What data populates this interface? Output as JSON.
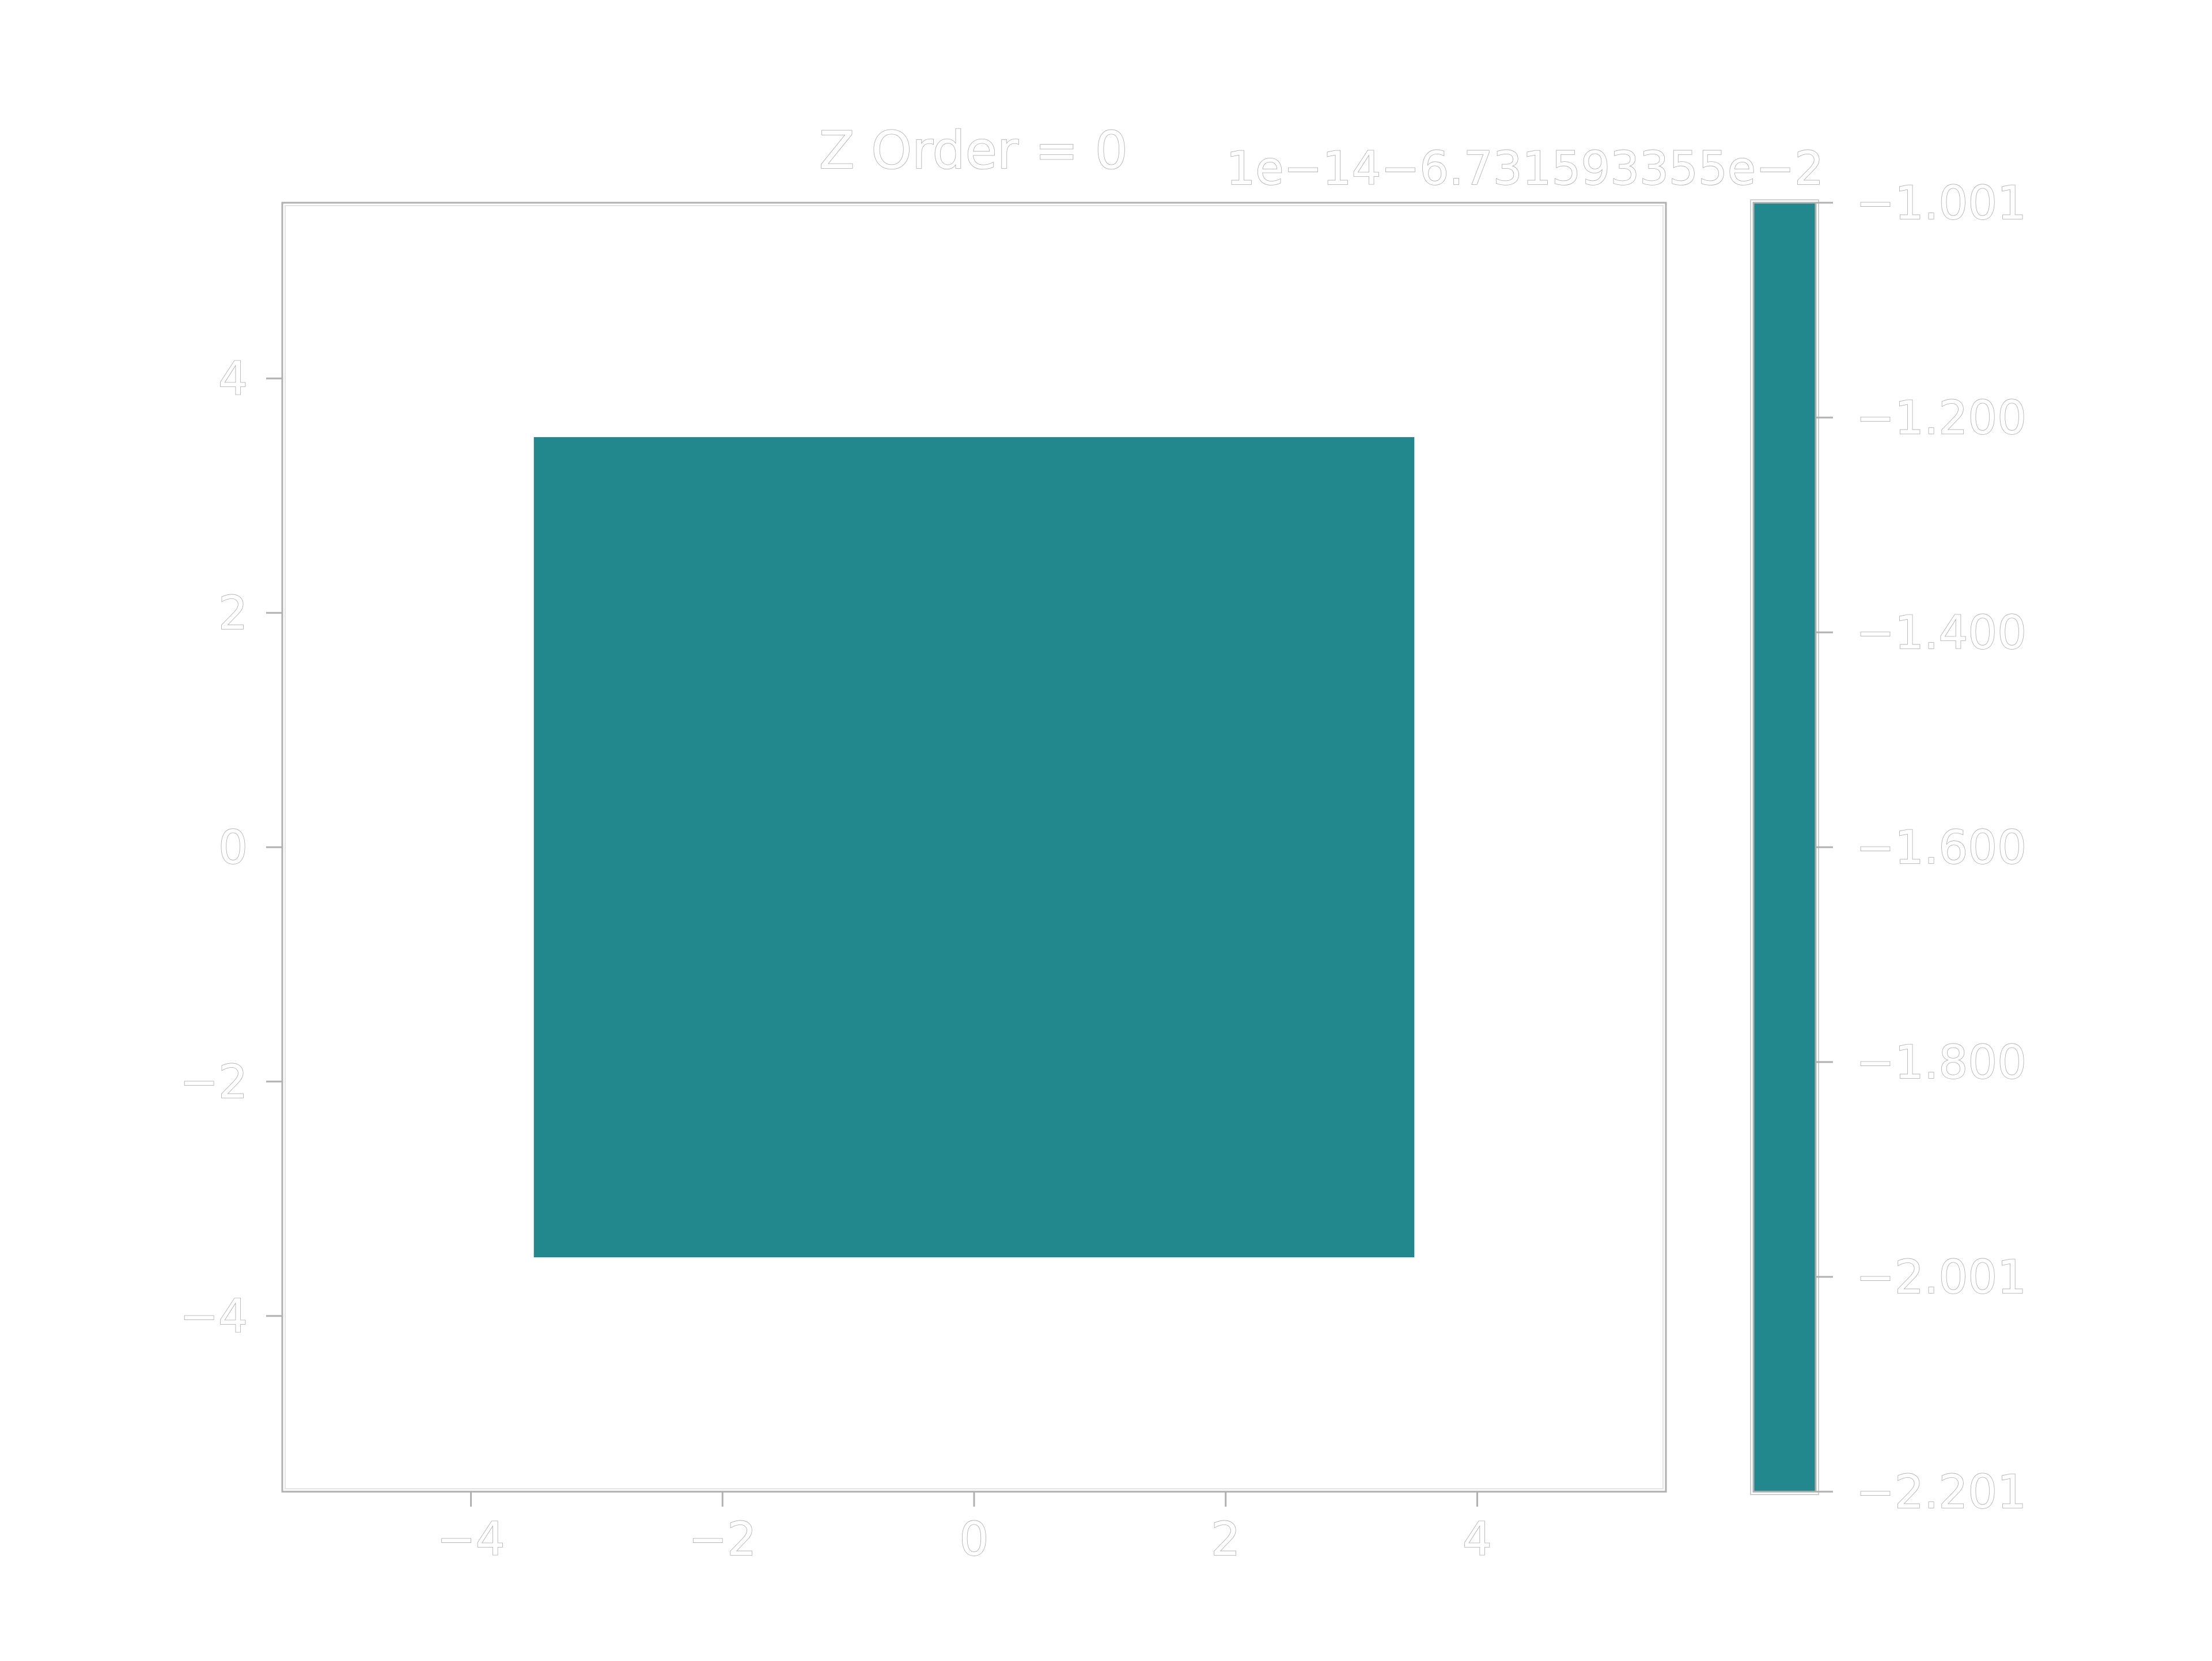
{
  "chart_data": {
    "type": "heatmap",
    "title": "Z Order = 0",
    "xlabel": "",
    "ylabel": "",
    "xlim": [
      -5.5,
      5.5
    ],
    "ylim": [
      -5.5,
      5.5
    ],
    "x_ticks": [
      -4,
      -2,
      0,
      2,
      4
    ],
    "y_ticks": [
      -4,
      -2,
      0,
      2,
      4
    ],
    "x_tick_labels": [
      "−4",
      "−2",
      "0",
      "2",
      "4"
    ],
    "y_tick_labels": [
      "−4",
      "−2",
      "0",
      "2",
      "4"
    ],
    "grid": false,
    "filled_region": {
      "x_range": [
        -3.5,
        3.5
      ],
      "y_range": [
        -3.5,
        3.5
      ],
      "color": "#23888e"
    },
    "colorbar": {
      "offset_label": "1e−14−6.731593355e−2",
      "tick_labels": [
        "−1.001",
        "−1.200",
        "−1.400",
        "−1.600",
        "−1.800",
        "−2.001",
        "−2.201"
      ],
      "tick_values": [
        -1.001,
        -1.2,
        -1.4,
        -1.6,
        -1.8,
        -2.001,
        -2.201
      ],
      "color": "#23888e"
    }
  }
}
